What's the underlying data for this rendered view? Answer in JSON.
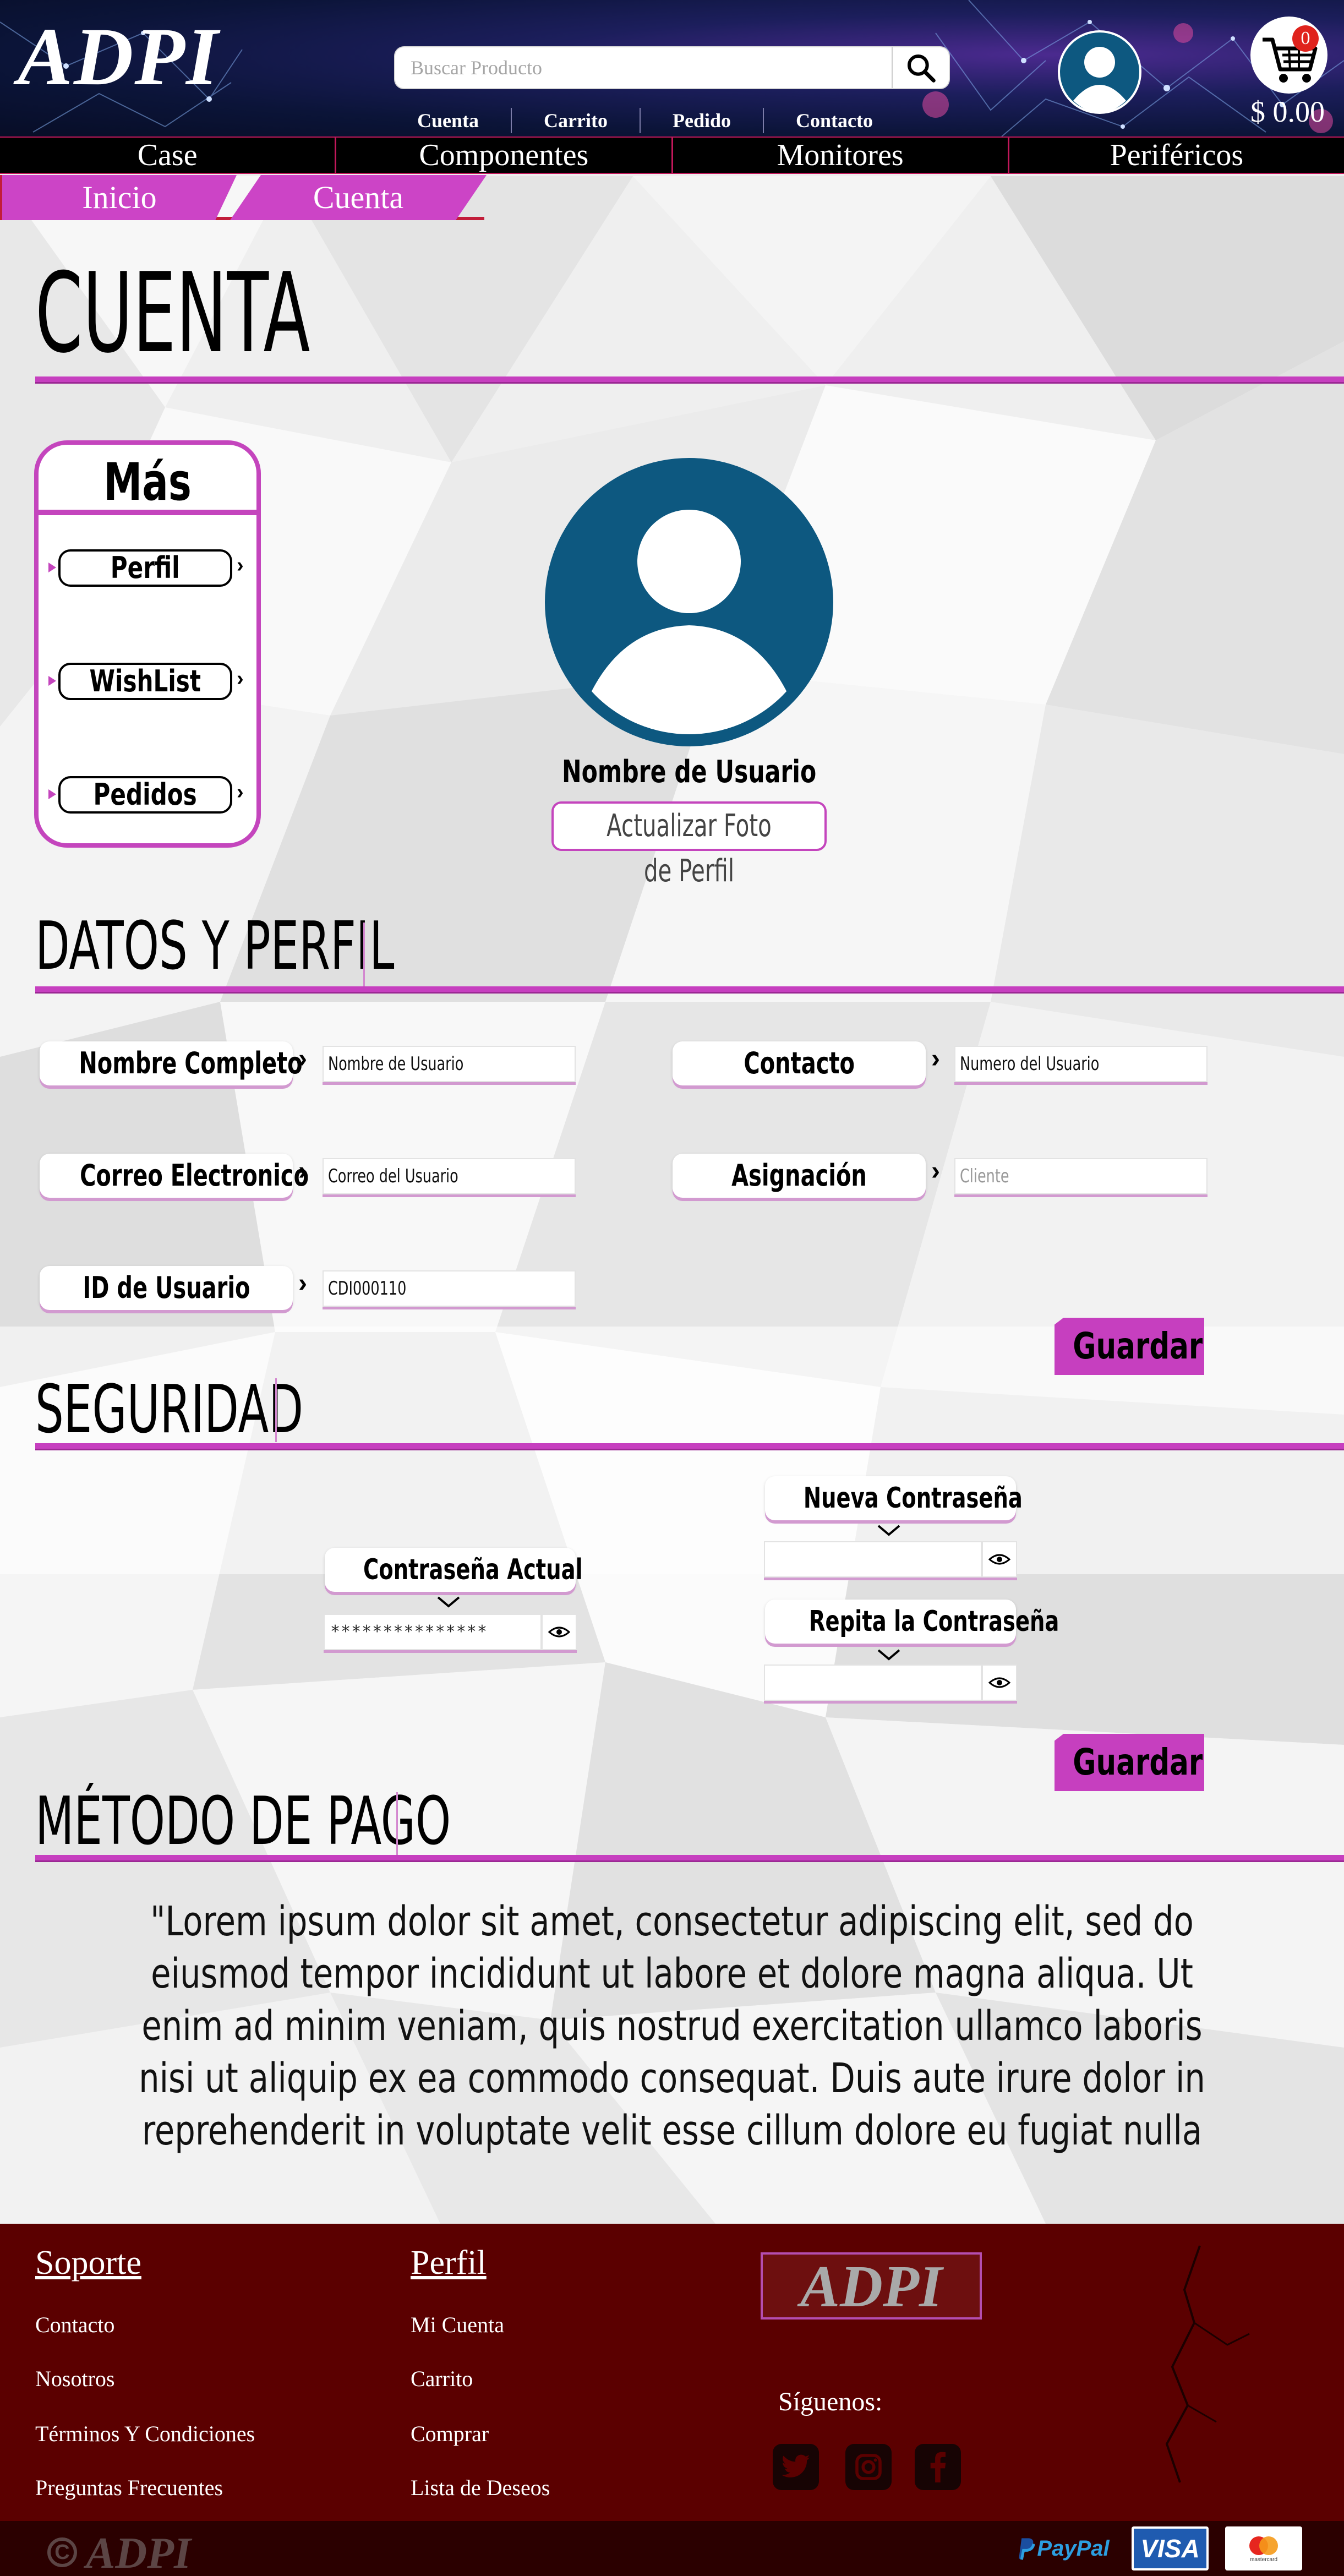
{
  "header": {
    "logo": "ADPI",
    "search": {
      "placeholder": "Buscar Producto",
      "value": ""
    },
    "top_links": [
      "Cuenta",
      "Carrito",
      "Pedido",
      "Contacto"
    ],
    "cart": {
      "count": "0",
      "total": "$ 0.00"
    },
    "icons": {
      "search": "search-icon",
      "user": "user-icon",
      "cart": "cart-icon"
    }
  },
  "nav": {
    "items": [
      "Case",
      "Componentes",
      "Monitores",
      "Periféricos"
    ]
  },
  "breadcrumb": {
    "items": [
      "Inicio",
      "Cuenta"
    ]
  },
  "page_title": "CUENTA",
  "sidebar": {
    "title": "Más",
    "items": [
      "Perfil",
      "WishList",
      "Pedidos"
    ]
  },
  "profile": {
    "username": "Nombre de Usuario",
    "update_photo_label": "Actualizar Foto de Perfil"
  },
  "datos": {
    "title": "DATOS Y PERFIL",
    "fields": [
      {
        "label": "Nombre Completo",
        "value": "Nombre de Usuario"
      },
      {
        "label": "Correo Electronico",
        "value": "Correo del Usuario"
      },
      {
        "label": "ID de Usuario",
        "value": "CDI000110"
      },
      {
        "label": "Contacto",
        "value": "Numero del Usuario"
      },
      {
        "label": "Asignación",
        "value": "",
        "placeholder": "Cliente"
      }
    ],
    "save_label": "Guardar"
  },
  "seguridad": {
    "title": "SEGURIDAD",
    "current_label": "Contraseña Actual",
    "current_value": "***************",
    "new_label": "Nueva Contraseña",
    "new_value": "",
    "repeat_label": "Repita la Contraseña",
    "repeat_value": "",
    "save_label": "Guardar"
  },
  "pago": {
    "title": "MÉTODO DE PAGO",
    "text": "\"Lorem ipsum dolor sit amet, consectetur adipiscing elit, sed do eiusmod tempor incididunt ut labore et dolore magna aliqua. Ut enim ad minim veniam, quis nostrud exercitation ullamco laboris nisi ut aliquip ex ea commodo consequat. Duis aute irure dolor in reprehenderit in voluptate velit esse cillum dolore eu fugiat nulla pariatur. Excepteur sint occaecat cupidatat non proident, sunt in culpa qui officia deserunt mollit anim id est laborum.\" \"Lorem ipsum dolor sit"
  },
  "footer": {
    "soporte": {
      "title": "Soporte",
      "links": [
        "Contacto",
        "Nosotros",
        "Términos Y Condiciones",
        "Preguntas Frecuentes"
      ]
    },
    "perfil": {
      "title": "Perfil",
      "links": [
        "Mi Cuenta",
        "Carrito",
        "Comprar",
        "Lista de Deseos"
      ]
    },
    "logo": "ADPI",
    "follow_label": "Síguenos:",
    "social": [
      "twitter-icon",
      "instagram-icon",
      "facebook-icon"
    ],
    "copyright_logo": "ADPI",
    "payments": [
      "PayPal",
      "VISA",
      "mastercard"
    ]
  },
  "colors": {
    "accent": "#c63fbf",
    "header_bg": "#0b1438",
    "footer_bg": "#5b0000",
    "bottom_bar": "#2b0000",
    "avatar": "#0d5880"
  }
}
